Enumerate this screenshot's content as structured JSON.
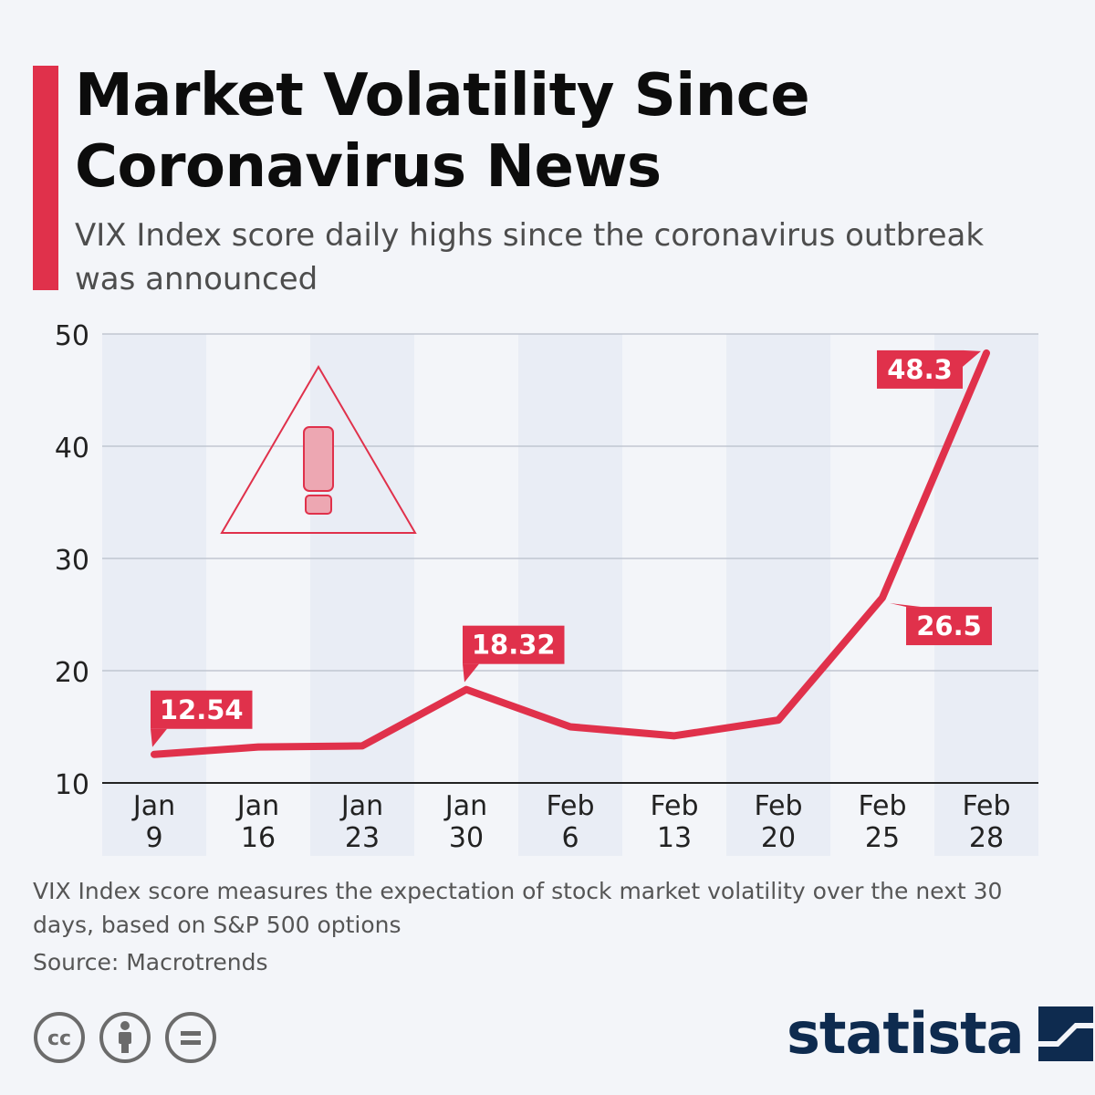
{
  "title": "Market Volatility Since Coronavirus News",
  "subtitle": "VIX Index score daily highs since the coronavirus outbreak was announced",
  "note": "VIX Index score measures the expectation of stock market volatility over the next 30 days, based on S&P 500 options",
  "source": "Source: Macrotrends",
  "brand": {
    "name": "statista",
    "icon": "statista-logo-icon"
  },
  "license_icons": [
    "cc-icon",
    "attribution-icon",
    "no-derivatives-icon"
  ],
  "colors": {
    "accent": "#e0314b",
    "brand": "#0e2b4f",
    "band": "#e9edf5",
    "background": "#f3f5f9"
  },
  "chart_data": {
    "type": "line",
    "title": "Market Volatility Since Coronavirus News",
    "xlabel": "",
    "ylabel": "",
    "categories": [
      [
        "Jan",
        "9"
      ],
      [
        "Jan",
        "16"
      ],
      [
        "Jan",
        "23"
      ],
      [
        "Jan",
        "30"
      ],
      [
        "Feb",
        "6"
      ],
      [
        "Feb",
        "13"
      ],
      [
        "Feb",
        "20"
      ],
      [
        "Feb",
        "25"
      ],
      [
        "Feb",
        "28"
      ]
    ],
    "series": [
      {
        "values": [
          12.54,
          13.2,
          13.3,
          18.32,
          15.0,
          14.2,
          15.6,
          26.5,
          48.3
        ]
      }
    ],
    "data_labels": [
      {
        "index": 0,
        "text": "12.54",
        "placement": "above-right"
      },
      {
        "index": 3,
        "text": "18.32",
        "placement": "above-right"
      },
      {
        "index": 7,
        "text": "26.5",
        "placement": "below-right"
      },
      {
        "index": 8,
        "text": "48.3",
        "placement": "left"
      }
    ],
    "ylim": [
      10,
      50
    ],
    "yticks": [
      10,
      20,
      30,
      40,
      50
    ],
    "grid": true,
    "legend": "none",
    "decoration": "warning-triangle-icon"
  }
}
